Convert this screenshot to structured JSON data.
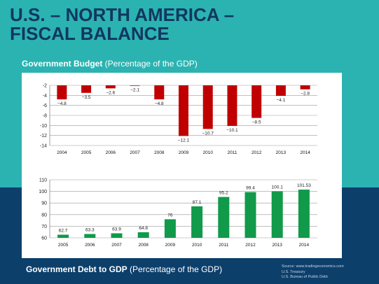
{
  "slide": {
    "title_line1": "U.S. – NORTH AMERICA –",
    "title_line2": "FISCAL BALANCE",
    "budget_caption_bold": "Government Budget",
    "budget_caption_rest": " (Percentage of the GDP)",
    "debt_caption_bold": "Government Debt to GDP",
    "debt_caption_rest": " (Percentage of the GDP)",
    "source_lines": [
      "Source: www.tradingeconomics.com",
      "U.S. Treasury",
      "U.S. Bureau of Public Debt"
    ],
    "colors": {
      "background": "#2bb3b1",
      "bottom_band": "#0d3f6b",
      "title": "#123760",
      "budget_bar": "#c00000",
      "debt_bar": "#109a4a"
    }
  },
  "chart_data": [
    {
      "type": "bar",
      "title": "",
      "categories": [
        "2004",
        "2005",
        "2006",
        "2007",
        "2008",
        "2009",
        "2010",
        "2011",
        "2012",
        "2013",
        "2014"
      ],
      "values": [
        -4.8,
        -3.5,
        -2.6,
        -2.1,
        -4.8,
        -12.1,
        -10.7,
        -10.1,
        -8.5,
        -4.1,
        -2.8
      ],
      "value_labels": [
        "−4.8",
        "−3.5",
        "−2.6",
        "−2.1",
        "−4.8",
        "−12.1",
        "−10.7",
        "−10.1",
        "−8.5",
        "−4.1",
        "−2.8"
      ],
      "ylim": [
        -14,
        -2
      ],
      "yticks": [
        -2,
        -4,
        -6,
        -8,
        -10,
        -12,
        -14
      ],
      "grid": true,
      "xlabel": "",
      "ylabel": ""
    },
    {
      "type": "bar",
      "title": "",
      "categories": [
        "2005",
        "2006",
        "2007",
        "2008",
        "2009",
        "2010",
        "2011",
        "2012",
        "2013",
        "2014"
      ],
      "values": [
        62.7,
        63.3,
        63.9,
        64.8,
        76,
        87.1,
        95.2,
        99.4,
        100.1,
        101.53
      ],
      "value_labels": [
        "62.7",
        "63.3",
        "63.9",
        "64.8",
        "76",
        "87.1",
        "95.2",
        "99.4",
        "100.1",
        "101.53"
      ],
      "ylim": [
        60,
        110
      ],
      "yticks": [
        60,
        70,
        80,
        90,
        100,
        110
      ],
      "grid": true,
      "xlabel": "",
      "ylabel": ""
    }
  ]
}
